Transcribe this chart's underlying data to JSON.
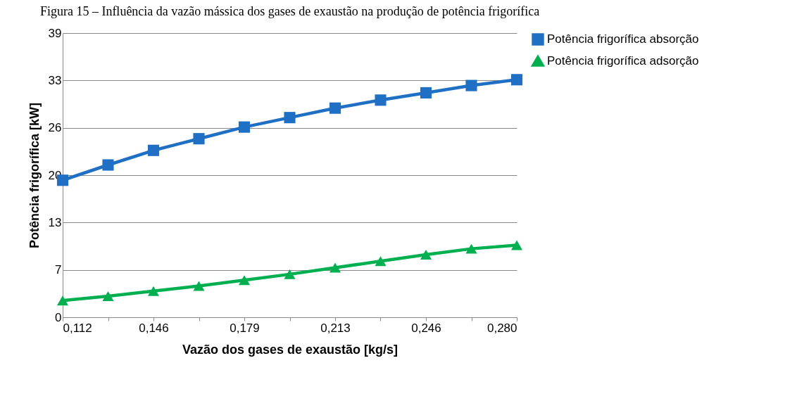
{
  "chart_data": {
    "type": "line",
    "title": "Figura 15 – Influência da vazão mássica dos gases de exaustão na produção de potência frigorífica",
    "xlabel": "Vazão dos gases de exaustão [kg/s]",
    "ylabel": "Potência frigorífica [kW]",
    "categories": [
      "0,112",
      null,
      "0,146",
      null,
      "0,179",
      null,
      "0,213",
      null,
      "0,246",
      null,
      "0,280"
    ],
    "series": [
      {
        "name": "Potência frigorífica absorção",
        "color": "#1f6fc5",
        "marker": "square",
        "values": [
          18.8,
          20.9,
          22.9,
          24.5,
          26.1,
          27.4,
          28.7,
          29.8,
          30.8,
          31.8,
          32.6
        ]
      },
      {
        "name": "Potência frigorífica adsorção",
        "color": "#00b050",
        "marker": "triangle",
        "values": [
          2.3,
          2.9,
          3.6,
          4.3,
          5.1,
          5.9,
          6.8,
          7.7,
          8.6,
          9.4,
          9.9
        ]
      }
    ],
    "ylim": [
      0,
      39
    ],
    "yticks": [
      0,
      {
        "value": 6.5,
        "label": "7"
      },
      13,
      {
        "value": 19.5,
        "label": "20"
      },
      26,
      {
        "value": 32.5,
        "label": "33"
      },
      39
    ],
    "grid": "y",
    "legend": "right",
    "line_style": "solid"
  }
}
